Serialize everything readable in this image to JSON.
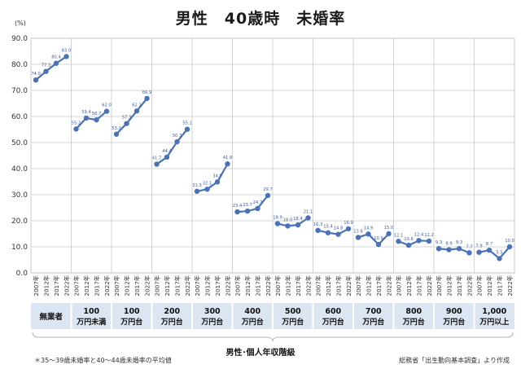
{
  "chart_data": {
    "type": "line",
    "title": "男性　40歳時　未婚率",
    "unit_label": "(%)",
    "ylim": [
      0,
      90
    ],
    "y_ticks": [
      "0.0",
      "10.0",
      "20.0",
      "30.0",
      "40.0",
      "50.0",
      "60.0",
      "70.0",
      "80.0",
      "90.0"
    ],
    "grid": true,
    "x_ticks": [
      "2007年",
      "2012年",
      "2017年",
      "2022年"
    ],
    "xlabel": "男性･個人年収階級",
    "series_color": "#4a72b8",
    "groups": [
      {
        "label": [
          "無業者"
        ],
        "values": [
          74.0,
          77.3,
          80.4,
          83.0
        ],
        "value_labels": [
          "74.0",
          "77.3",
          "80.4",
          "83.0"
        ]
      },
      {
        "label": [
          "100",
          "万円未満"
        ],
        "values": [
          55.2,
          59.4,
          58.7,
          62.0
        ],
        "value_labels": [
          "55.2",
          "59.4",
          "58.7",
          "62.0"
        ]
      },
      {
        "label": [
          "100",
          "万円台"
        ],
        "values": [
          53.2,
          57.3,
          62.1,
          66.9
        ],
        "value_labels": [
          "53.2",
          "57.3",
          "62.1",
          "66.9"
        ]
      },
      {
        "label": [
          "200",
          "万円台"
        ],
        "values": [
          41.7,
          44.4,
          50.3,
          55.1
        ],
        "value_labels": [
          "41.7",
          "44.4",
          "50.3",
          "55.1"
        ]
      },
      {
        "label": [
          "300",
          "万円台"
        ],
        "values": [
          31.3,
          32.1,
          34.9,
          41.8
        ],
        "value_labels": [
          "31.3",
          "32.1",
          "34.9",
          "41.8"
        ]
      },
      {
        "label": [
          "400",
          "万円台"
        ],
        "values": [
          23.4,
          23.7,
          24.7,
          29.7
        ],
        "value_labels": [
          "23.4",
          "23.7",
          "24.7",
          "29.7"
        ]
      },
      {
        "label": [
          "500",
          "万円台"
        ],
        "values": [
          18.9,
          18.0,
          18.4,
          21.1
        ],
        "value_labels": [
          "18.9",
          "18.0",
          "18.4",
          "21.1"
        ]
      },
      {
        "label": [
          "600",
          "万円台"
        ],
        "values": [
          16.3,
          15.4,
          14.8,
          16.9
        ],
        "value_labels": [
          "16.3",
          "15.4",
          "14.8",
          "16.9"
        ]
      },
      {
        "label": [
          "700",
          "万円台"
        ],
        "values": [
          13.6,
          14.9,
          10.9,
          15.0
        ],
        "value_labels": [
          "13.6",
          "14.9",
          "10.9",
          "15.0"
        ]
      },
      {
        "label": [
          "800",
          "万円台"
        ],
        "values": [
          12.1,
          10.6,
          12.4,
          12.2
        ],
        "value_labels": [
          "12.1",
          "10.6",
          "12.4",
          "12.2"
        ]
      },
      {
        "label": [
          "900",
          "万円台"
        ],
        "values": [
          9.3,
          8.9,
          9.3,
          7.7
        ],
        "value_labels": [
          "9.3",
          "8.9",
          "9.3",
          "7.7"
        ]
      },
      {
        "label": [
          "1,000",
          "万円以上"
        ],
        "values": [
          7.9,
          8.7,
          5.5,
          10.0
        ],
        "value_labels": [
          "7.9",
          "8.7",
          "5.5",
          "10.0"
        ]
      }
    ]
  },
  "footnote": "＊35～39歳未婚率と40～44歳未婚率の平均値",
  "source": "総務省「出生動向基本調査」より作成"
}
